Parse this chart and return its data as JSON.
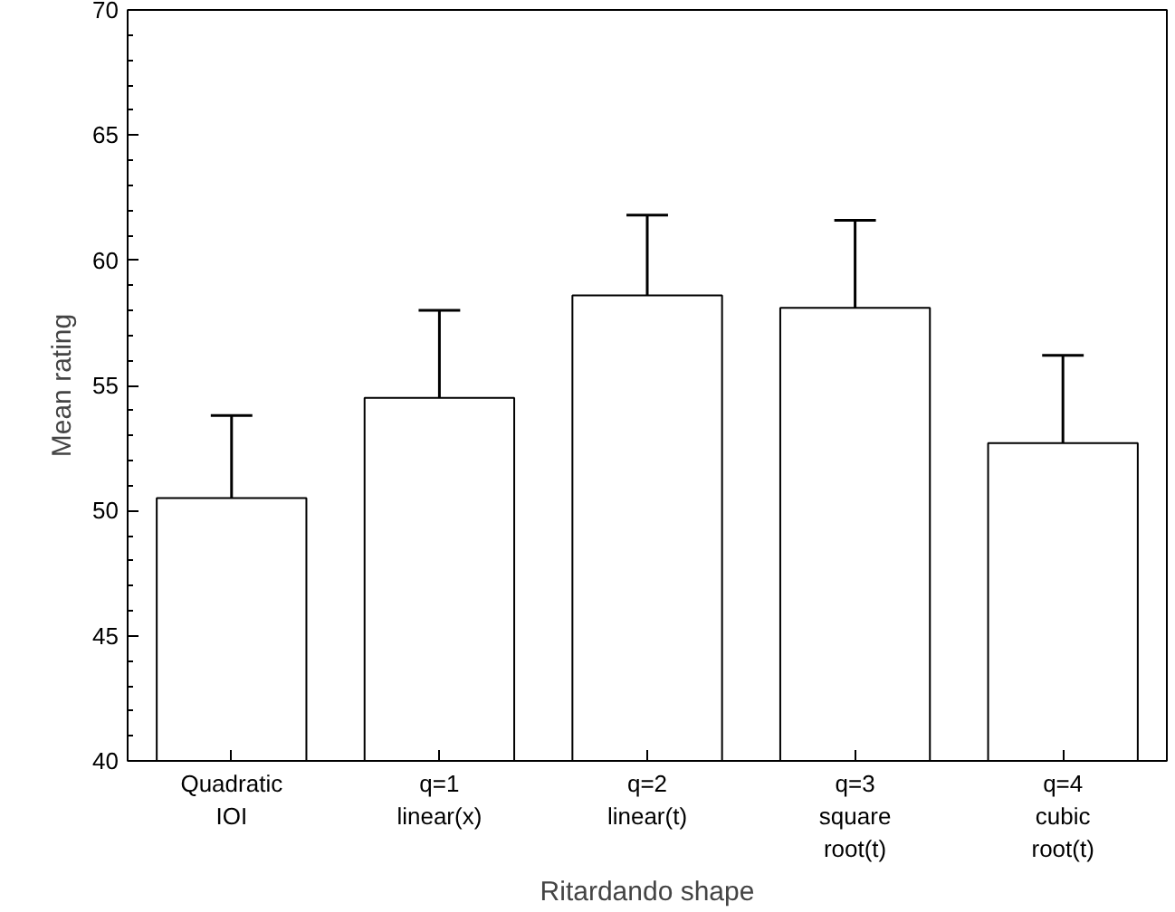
{
  "chart_data": {
    "type": "bar",
    "xlabel": "Ritardando shape",
    "ylabel": "Mean rating",
    "categories": [
      "Quadratic\nIOI",
      "q=1\nlinear(x)",
      "q=2\nlinear(t)",
      "q=3\nsquare\nroot(t)",
      "q=4\ncubic\nroot(t)"
    ],
    "values": [
      50.5,
      54.5,
      58.6,
      58.1,
      52.7
    ],
    "errors": [
      [
        50.5,
        53.8
      ],
      [
        54.5,
        58.0
      ],
      [
        58.6,
        61.8
      ],
      [
        58.1,
        61.6
      ],
      [
        52.7,
        56.2
      ]
    ],
    "color": "#ffffff",
    "ylim": [
      40,
      70
    ],
    "yticks": [
      40,
      45,
      50,
      55,
      60,
      65,
      70
    ],
    "grid": false
  }
}
